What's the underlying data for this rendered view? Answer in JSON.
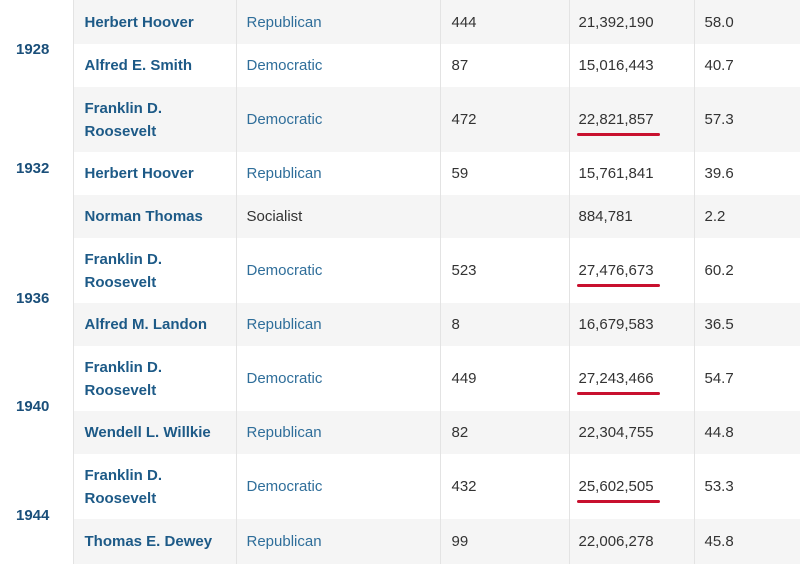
{
  "rows": [
    {
      "year": "1928",
      "candidate": "Herbert Hoover",
      "party": "Republican",
      "electoral": "444",
      "popular": "21,392,190",
      "percent": "58.0",
      "marked": false
    },
    {
      "year": "",
      "candidate": "Alfred E. Smith",
      "party": "Democratic",
      "electoral": "87",
      "popular": "15,016,443",
      "percent": "40.7",
      "marked": false
    },
    {
      "year": "1932",
      "candidate": "Franklin D. Roosevelt",
      "party": "Democratic",
      "electoral": "472",
      "popular": "22,821,857",
      "percent": "57.3",
      "marked": true
    },
    {
      "year": "",
      "candidate": "Herbert Hoover",
      "party": "Republican",
      "electoral": "59",
      "popular": "15,761,841",
      "percent": "39.6",
      "marked": false
    },
    {
      "year": "",
      "candidate": "Norman Thomas",
      "party": "Socialist",
      "electoral": "",
      "popular": "884,781",
      "percent": "2.2",
      "marked": false
    },
    {
      "year": "1936",
      "candidate": "Franklin D. Roosevelt",
      "party": "Democratic",
      "electoral": "523",
      "popular": "27,476,673",
      "percent": "60.2",
      "marked": true
    },
    {
      "year": "",
      "candidate": "Alfred M. Landon",
      "party": "Republican",
      "electoral": "8",
      "popular": "16,679,583",
      "percent": "36.5",
      "marked": false
    },
    {
      "year": "1940",
      "candidate": "Franklin D. Roosevelt",
      "party": "Democratic",
      "electoral": "449",
      "popular": "27,243,466",
      "percent": "54.7",
      "marked": true
    },
    {
      "year": "",
      "candidate": "Wendell L. Willkie",
      "party": "Republican",
      "electoral": "82",
      "popular": "22,304,755",
      "percent": "44.8",
      "marked": false
    },
    {
      "year": "1944",
      "candidate": "Franklin D. Roosevelt",
      "party": "Democratic",
      "electoral": "432",
      "popular": "25,602,505",
      "percent": "53.3",
      "marked": true
    },
    {
      "year": "",
      "candidate": "Thomas E. Dewey",
      "party": "Republican",
      "electoral": "99",
      "popular": "22,006,278",
      "percent": "45.8",
      "marked": false
    }
  ],
  "colors": {
    "underline": "#c8102e",
    "candidate_link": "#1d5a87",
    "party_link": "#2f6e9a",
    "row_shade": "#f5f5f5"
  }
}
